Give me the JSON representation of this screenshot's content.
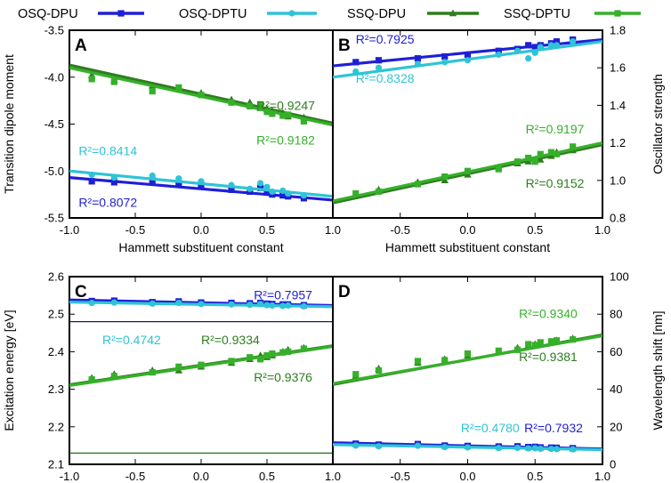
{
  "legend": [
    {
      "name": "OSQ-DPU",
      "color": "#1f1fd6",
      "marker": "square"
    },
    {
      "name": "OSQ-DPTU",
      "color": "#2ec4d6",
      "marker": "circle"
    },
    {
      "name": "SSQ-DPU",
      "color": "#2e7d1f",
      "marker": "triangle"
    },
    {
      "name": "SSQ-DPTU",
      "color": "#36b02a",
      "marker": "square"
    }
  ],
  "chart_data": [
    {
      "panel": "A",
      "type": "scatter",
      "xlabel": "Hammett substituent constant",
      "ylabel": "Transition dipole moment",
      "ylabel_side": "left",
      "xlim": [
        -1.0,
        1.0
      ],
      "ylim": [
        -5.5,
        -3.5
      ],
      "xticks": [
        "-1.0",
        "-0.5",
        "0.0",
        "0.5",
        "1.0"
      ],
      "yticks": [
        "-3.5",
        "-4.0",
        "-4.5",
        "-5.0",
        "-5.5"
      ],
      "ytick_values": [
        -3.5,
        -4.0,
        -4.5,
        -5.0,
        -5.5
      ],
      "x": [
        -0.83,
        -0.66,
        -0.37,
        -0.17,
        0.0,
        0.23,
        0.37,
        0.45,
        0.5,
        0.54,
        0.62,
        0.66,
        0.78
      ],
      "series": [
        {
          "name": "OSQ-DPU",
          "line": [
            -5.07,
            -5.31
          ],
          "values": [
            -5.11,
            -5.12,
            -5.1,
            -5.13,
            -5.15,
            -5.2,
            -5.22,
            -5.18,
            -5.23,
            -5.25,
            -5.26,
            -5.27,
            -5.29
          ]
        },
        {
          "name": "OSQ-DPTU",
          "line": [
            -5.0,
            -5.27
          ],
          "values": [
            -5.04,
            -5.07,
            -5.05,
            -5.08,
            -5.11,
            -5.15,
            -5.19,
            -5.13,
            -5.17,
            -5.22,
            -5.21,
            -5.24,
            -5.26
          ]
        },
        {
          "name": "SSQ-DPU",
          "line": [
            -3.87,
            -4.49
          ],
          "values": [
            -3.98,
            -4.03,
            -4.09,
            -4.13,
            -4.17,
            -4.24,
            -4.27,
            -4.33,
            -4.34,
            -4.36,
            -4.38,
            -4.42,
            -4.43
          ]
        },
        {
          "name": "SSQ-DPTU",
          "line": [
            -3.9,
            -4.51
          ],
          "values": [
            -4.02,
            -4.05,
            -4.15,
            -4.11,
            -4.19,
            -4.27,
            -4.31,
            -4.29,
            -4.37,
            -4.39,
            -4.41,
            -4.4,
            -4.47
          ]
        }
      ],
      "annotations": [
        {
          "text": "R²=0.9247",
          "series": "SSQ-DPU",
          "x": 0.42,
          "y": -4.35
        },
        {
          "text": "R²=0.9182",
          "series": "SSQ-DPTU",
          "x": 0.42,
          "y": -4.72
        },
        {
          "text": "R²=0.8414",
          "series": "OSQ-DPTU",
          "x": -0.93,
          "y": -4.83
        },
        {
          "text": "R²=0.8072",
          "series": "OSQ-DPU",
          "x": -0.93,
          "y": -5.38
        }
      ]
    },
    {
      "panel": "B",
      "type": "scatter",
      "xlabel": "Hammett substituent constant",
      "ylabel": "Oscillator strength",
      "ylabel_side": "right",
      "xlim": [
        -1.0,
        1.0
      ],
      "ylim": [
        0.8,
        1.8
      ],
      "xticks": [
        "-0.5",
        "0.0",
        "0.5",
        "1.0"
      ],
      "yticks": [
        "1.8",
        "1.6",
        "1.4",
        "1.2",
        "1.0",
        "0.8"
      ],
      "ytick_values": [
        1.8,
        1.6,
        1.4,
        1.2,
        1.0,
        0.8
      ],
      "x": [
        -0.83,
        -0.66,
        -0.37,
        -0.17,
        0.0,
        0.23,
        0.37,
        0.45,
        0.5,
        0.54,
        0.62,
        0.66,
        0.78
      ],
      "series": [
        {
          "name": "OSQ-DPU",
          "line": [
            1.61,
            1.75
          ],
          "values": [
            1.63,
            1.64,
            1.65,
            1.66,
            1.67,
            1.69,
            1.7,
            1.72,
            1.71,
            1.72,
            1.73,
            1.74,
            1.75
          ]
        },
        {
          "name": "OSQ-DPTU",
          "line": [
            1.55,
            1.74
          ],
          "values": [
            1.58,
            1.6,
            1.62,
            1.63,
            1.64,
            1.67,
            1.69,
            1.65,
            1.68,
            1.71,
            1.72,
            1.72,
            1.74
          ]
        },
        {
          "name": "SSQ-DPU",
          "line": [
            0.88,
            1.19
          ],
          "values": [
            0.92,
            0.95,
            0.99,
            1.0,
            1.03,
            1.07,
            1.09,
            1.1,
            1.11,
            1.11,
            1.13,
            1.15,
            1.16
          ]
        },
        {
          "name": "SSQ-DPTU",
          "line": [
            0.89,
            1.2
          ],
          "values": [
            0.93,
            0.94,
            0.98,
            1.02,
            1.05,
            1.06,
            1.1,
            1.12,
            1.1,
            1.14,
            1.15,
            1.14,
            1.18
          ]
        }
      ],
      "annotations": [
        {
          "text": "R²=0.7925",
          "series": "OSQ-DPU",
          "x": -0.83,
          "y": 1.73
        },
        {
          "text": "R²=0.8328",
          "series": "OSQ-DPTU",
          "x": -0.83,
          "y": 1.52
        },
        {
          "text": "R²=0.9197",
          "series": "SSQ-DPTU",
          "x": 0.43,
          "y": 1.25
        },
        {
          "text": "R²=0.9152",
          "series": "SSQ-DPU",
          "x": 0.43,
          "y": 0.96
        }
      ]
    },
    {
      "panel": "C",
      "type": "scatter",
      "xlabel": "Hammett substituent constant",
      "ylabel": "Excitation energy [eV]",
      "ylabel_side": "left",
      "xlim": [
        -1.0,
        1.0
      ],
      "ylim": [
        2.1,
        2.6
      ],
      "xticks": [
        "-1.0",
        "-0.5",
        "0.0",
        "0.5",
        "1.0"
      ],
      "yticks": [
        "2.6",
        "2.5",
        "2.4",
        "2.3",
        "2.2",
        "2.1"
      ],
      "ytick_values": [
        2.6,
        2.5,
        2.4,
        2.3,
        2.2,
        2.1
      ],
      "x": [
        -0.83,
        -0.66,
        -0.37,
        -0.17,
        0.0,
        0.23,
        0.37,
        0.45,
        0.5,
        0.54,
        0.62,
        0.66,
        0.78
      ],
      "series": [
        {
          "name": "OSQ-DPU",
          "line": [
            2.538,
            2.523
          ],
          "values": [
            2.535,
            2.536,
            2.532,
            2.534,
            2.531,
            2.53,
            2.529,
            2.53,
            2.528,
            2.527,
            2.526,
            2.526,
            2.524
          ]
        },
        {
          "name": "OSQ-DPTU",
          "line": [
            2.532,
            2.52
          ],
          "values": [
            2.53,
            2.531,
            2.528,
            2.53,
            2.527,
            2.526,
            2.525,
            2.527,
            2.524,
            2.523,
            2.522,
            2.523,
            2.521
          ]
        },
        {
          "name": "SSQ-DPU",
          "line": [
            2.312,
            2.416
          ],
          "values": [
            2.33,
            2.34,
            2.35,
            2.35,
            2.36,
            2.37,
            2.38,
            2.39,
            2.385,
            2.39,
            2.4,
            2.405,
            2.41
          ]
        },
        {
          "name": "SSQ-DPTU",
          "line": [
            2.31,
            2.414
          ],
          "values": [
            2.326,
            2.335,
            2.345,
            2.36,
            2.365,
            2.375,
            2.385,
            2.38,
            2.39,
            2.395,
            2.398,
            2.4,
            2.408
          ]
        }
      ],
      "hlines": [
        {
          "y": 2.48,
          "color": "#1a1a6e"
        },
        {
          "y": 2.13,
          "color": "#1f6e1f"
        }
      ],
      "annotations": [
        {
          "text": "R²=0.7957",
          "series": "OSQ-DPU",
          "x": 0.4,
          "y": 2.54
        },
        {
          "text": "R²=0.4742",
          "series": "OSQ-DPTU",
          "x": -0.75,
          "y": 2.42
        },
        {
          "text": "R²=0.9334",
          "series": "SSQ-DPU",
          "x": 0.0,
          "y": 2.42
        },
        {
          "text": "R²=0.9376",
          "series": "SSQ-DPU",
          "x": 0.4,
          "y": 2.32
        }
      ]
    },
    {
      "panel": "D",
      "type": "scatter",
      "xlabel": "Hammett substituent constant",
      "ylabel": "Wavelength shift [nm]",
      "ylabel_side": "right",
      "xlim": [
        -1.0,
        1.0
      ],
      "ylim": [
        0,
        100
      ],
      "xticks": [
        "-0.5",
        "0.0",
        "0.5",
        "1.0"
      ],
      "yticks": [
        "100",
        "80",
        "60",
        "40",
        "20",
        "0"
      ],
      "ytick_values": [
        100,
        80,
        60,
        40,
        20,
        0
      ],
      "x": [
        -0.83,
        -0.66,
        -0.37,
        -0.17,
        0.0,
        0.23,
        0.37,
        0.45,
        0.5,
        0.54,
        0.62,
        0.66,
        0.78
      ],
      "series": [
        {
          "name": "OSQ-DPU",
          "line": [
            11.5,
            8.2
          ],
          "values": [
            11.0,
            10.5,
            10.8,
            10.0,
            9.8,
            9.5,
            9.6,
            9.2,
            9.3,
            9.0,
            8.9,
            8.8,
            8.6
          ]
        },
        {
          "name": "OSQ-DPTU",
          "line": [
            10.5,
            7.8
          ],
          "values": [
            10.0,
            9.6,
            9.9,
            9.2,
            9.0,
            8.7,
            8.8,
            8.5,
            8.6,
            8.3,
            8.2,
            8.1,
            8.0
          ]
        },
        {
          "name": "SSQ-DPU",
          "line": [
            42.5,
            69.0
          ],
          "values": [
            47,
            51,
            54,
            56,
            58,
            60,
            62,
            63,
            64,
            64.5,
            65,
            66,
            67
          ]
        },
        {
          "name": "SSQ-DPTU",
          "line": [
            43.0,
            68.5
          ],
          "values": [
            48,
            50,
            55,
            55.5,
            59,
            60.5,
            61,
            64,
            63.5,
            65,
            65.5,
            66,
            66.5
          ]
        }
      ],
      "annotations": [
        {
          "text": "R²=0.9340",
          "series": "SSQ-DPTU",
          "x": 0.38,
          "y": 78
        },
        {
          "text": "R²=0.9381",
          "series": "SSQ-DPU",
          "x": 0.38,
          "y": 55
        },
        {
          "text": "R²=0.4780",
          "series": "OSQ-DPTU",
          "x": -0.05,
          "y": 17
        },
        {
          "text": "R²=0.7932",
          "series": "OSQ-DPU",
          "x": 0.42,
          "y": 17
        }
      ]
    }
  ]
}
